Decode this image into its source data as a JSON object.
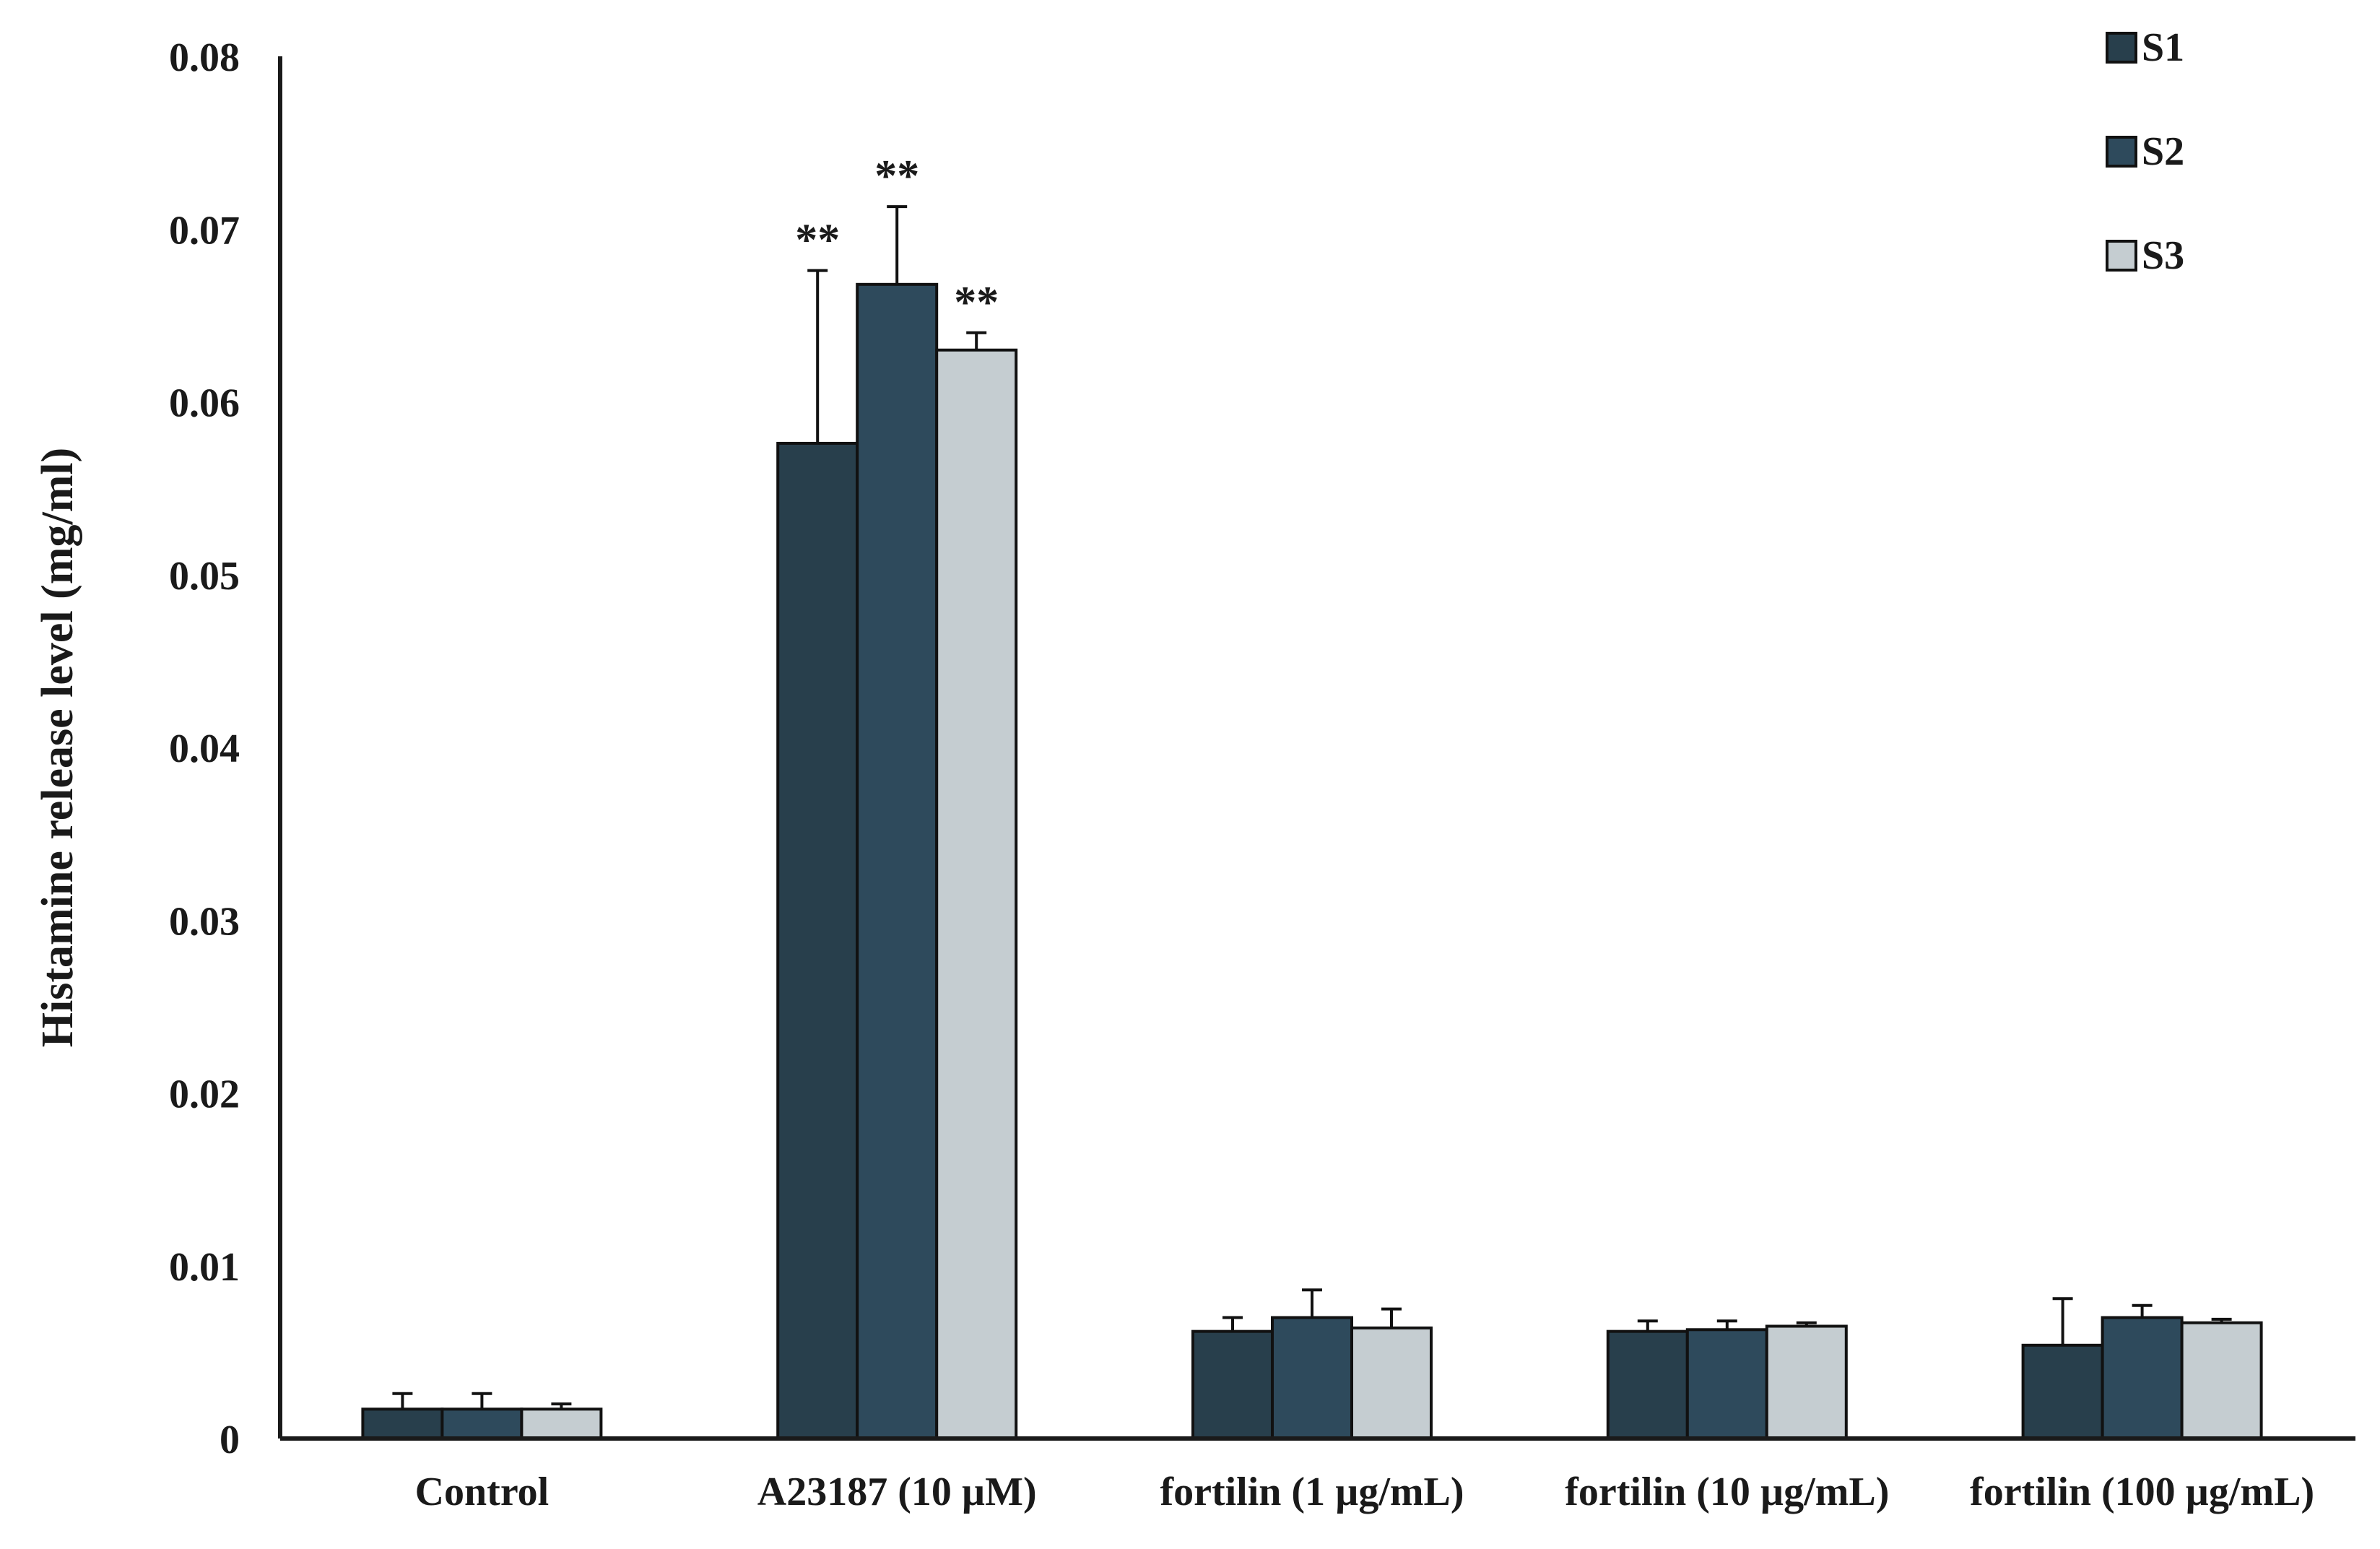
{
  "chart_data": {
    "type": "bar",
    "ylabel": "Histamine release level (mg/ml)",
    "xlabel": "",
    "ylim": [
      0,
      0.08
    ],
    "yticks": [
      0,
      0.01,
      0.02,
      0.03,
      0.04,
      0.05,
      0.06,
      0.07,
      0.08
    ],
    "ytick_labels": [
      "0",
      "0.01",
      "0.02",
      "0.03",
      "0.04",
      "0.05",
      "0.06",
      "0.07",
      "0.08"
    ],
    "categories": [
      "Control",
      "A23187  (10 µM)",
      "fortilin (1 µg/mL)",
      "fortilin (10 µg/mL)",
      "fortilin (100 µg/mL)"
    ],
    "series": [
      {
        "name": "S1",
        "color": "#283f4c",
        "values": [
          0.0017,
          0.0576,
          0.0062,
          0.0062,
          0.0054
        ],
        "errors": [
          0.0009,
          0.01,
          0.0008,
          0.0006,
          0.0027
        ]
      },
      {
        "name": "S2",
        "color": "#2e4a5c",
        "values": [
          0.0017,
          0.0668,
          0.007,
          0.0063,
          0.007
        ],
        "errors": [
          0.0009,
          0.0045,
          0.0016,
          0.0005,
          0.0007
        ]
      },
      {
        "name": "S3",
        "color": "#c5cdd1",
        "values": [
          0.0017,
          0.063,
          0.0064,
          0.0065,
          0.0067
        ],
        "errors": [
          0.0003,
          0.001,
          0.0011,
          0.0002,
          0.0002
        ]
      }
    ],
    "annotations": [
      {
        "category": 1,
        "series": 0,
        "text": "**"
      },
      {
        "category": 1,
        "series": 1,
        "text": "**"
      },
      {
        "category": 1,
        "series": 2,
        "text": "**"
      }
    ],
    "legend": {
      "position": "top-right",
      "items": [
        "S1",
        "S2",
        "S3"
      ]
    },
    "grid": false
  }
}
